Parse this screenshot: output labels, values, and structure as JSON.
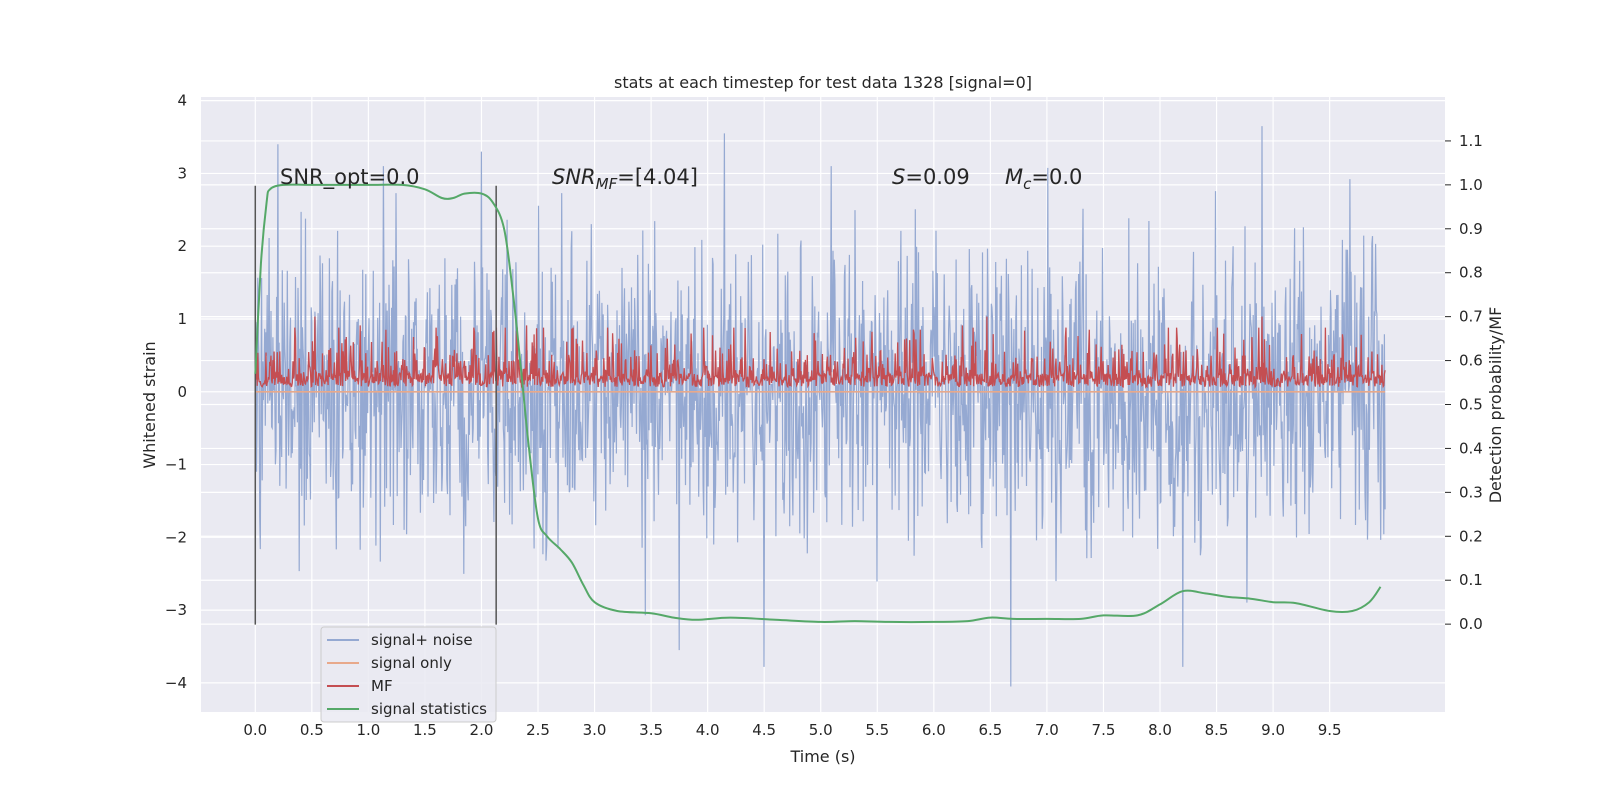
{
  "chart_data": {
    "type": "line",
    "title": "stats at each timestep for test data 1328 [signal=0]",
    "xlabel": "Time (s)",
    "ylabel": "Whitened strain",
    "y2label": "Detection probability/MF",
    "xlim": [
      -0.48,
      10.52
    ],
    "ylim": [
      -4.4,
      4.05
    ],
    "y2lim": [
      -0.2,
      1.2
    ],
    "x_ticks": [
      0.0,
      0.5,
      1.0,
      1.5,
      2.0,
      2.5,
      3.0,
      3.5,
      4.0,
      4.5,
      5.0,
      5.5,
      6.0,
      6.5,
      7.0,
      7.5,
      8.0,
      8.5,
      9.0,
      9.5
    ],
    "x_tick_labels": [
      "0.0",
      "0.5",
      "1.0",
      "1.5",
      "2.0",
      "2.5",
      "3.0",
      "3.5",
      "4.0",
      "4.5",
      "5.0",
      "5.5",
      "6.0",
      "6.5",
      "7.0",
      "7.5",
      "8.0",
      "8.5",
      "9.0",
      "9.5"
    ],
    "y_ticks": [
      4,
      3,
      2,
      1,
      0,
      -1,
      -2,
      -3,
      -4
    ],
    "y_tick_labels": [
      "4",
      "3",
      "2",
      "1",
      "0",
      "−1",
      "−2",
      "−3",
      "−4"
    ],
    "y2_ticks": [
      1.1,
      1.0,
      0.9,
      0.8,
      0.7,
      0.6,
      0.5,
      0.4,
      0.3,
      0.2,
      0.1,
      0.0
    ],
    "y2_tick_labels": [
      "1.1",
      "1.0",
      "0.9",
      "0.8",
      "0.7",
      "0.6",
      "0.5",
      "0.4",
      "0.3",
      "0.2",
      "0.1",
      "0.0"
    ],
    "grid": true,
    "legend_position": "lower-left",
    "annotations": {
      "snr_opt": "SNR_opt=0.0",
      "snr_mf_main": "SNR",
      "snr_mf_sub": "MF",
      "snr_mf_value": "=[4.04]",
      "s_main": "S",
      "s_value": "=0.09",
      "mc_main": "M",
      "mc_sub": "c",
      "mc_value": "=0.0"
    },
    "vertical_lines_x": [
      0.0,
      2.13
    ],
    "series": [
      {
        "name": "signal+ noise",
        "color": "#95a9d2",
        "axis": "left",
        "x_range": [
          0.0,
          9.99
        ],
        "samples": 1800,
        "typical_amplitude": 1.0,
        "peaks": [
          [
            0.2,
            3.4
          ],
          [
            2.0,
            3.3
          ],
          [
            4.15,
            3.55
          ],
          [
            8.9,
            3.65
          ],
          [
            6.68,
            -4.05
          ],
          [
            4.5,
            -3.78
          ],
          [
            3.75,
            -3.55
          ],
          [
            8.2,
            -3.78
          ]
        ]
      },
      {
        "name": "signal only",
        "color": "#e8a98b",
        "axis": "left",
        "x": [
          0.0,
          9.99
        ],
        "y": [
          0.0,
          0.0
        ]
      },
      {
        "name": "MF",
        "color": "#c44e52",
        "axis": "right",
        "x_range": [
          0.0,
          9.99
        ],
        "samples": 1800,
        "baseline": 0.54,
        "upper_typical": 0.62,
        "upper_peaks": [
          [
            0.53,
            0.7
          ],
          [
            6.47,
            0.7
          ],
          [
            8.9,
            0.7
          ],
          [
            0.93,
            0.68
          ],
          [
            2.4,
            0.68
          ],
          [
            6.25,
            0.68
          ]
        ]
      },
      {
        "name": "signal statistics",
        "color": "#55a868",
        "axis": "right",
        "x": [
          0.0,
          0.05,
          0.1,
          0.13,
          0.25,
          0.5,
          1.0,
          1.3,
          1.5,
          1.65,
          1.75,
          1.85,
          2.0,
          2.1,
          2.2,
          2.28,
          2.35,
          2.42,
          2.5,
          2.58,
          2.7,
          2.8,
          2.9,
          3.0,
          3.2,
          3.5,
          3.7,
          3.9,
          4.2,
          4.6,
          5.0,
          5.3,
          5.6,
          6.0,
          6.3,
          6.5,
          6.7,
          7.0,
          7.3,
          7.5,
          7.8,
          8.0,
          8.2,
          8.4,
          8.6,
          8.8,
          9.0,
          9.2,
          9.5,
          9.7,
          9.85,
          9.95
        ],
        "y": [
          0.57,
          0.82,
          0.96,
          0.99,
          1.0,
          1.0,
          1.0,
          1.0,
          0.99,
          0.97,
          0.97,
          0.98,
          0.98,
          0.96,
          0.9,
          0.75,
          0.58,
          0.4,
          0.24,
          0.2,
          0.17,
          0.14,
          0.09,
          0.05,
          0.03,
          0.025,
          0.015,
          0.01,
          0.015,
          0.01,
          0.005,
          0.007,
          0.005,
          0.005,
          0.007,
          0.015,
          0.012,
          0.012,
          0.012,
          0.02,
          0.02,
          0.045,
          0.075,
          0.07,
          0.062,
          0.058,
          0.05,
          0.048,
          0.03,
          0.03,
          0.05,
          0.085
        ]
      }
    ]
  }
}
